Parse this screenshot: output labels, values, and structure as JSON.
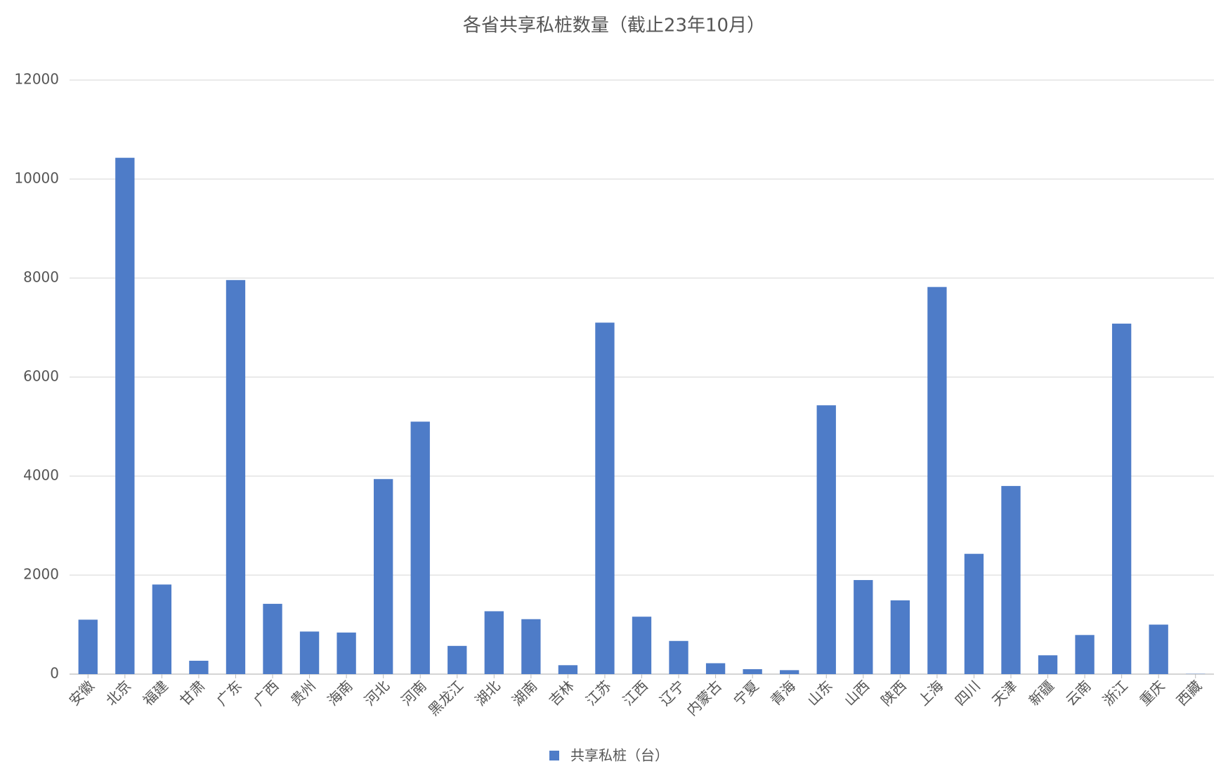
{
  "chart_data": {
    "type": "bar",
    "title": "各省共享私桩数量（截止23年10月）",
    "categories": [
      "安徽",
      "北京",
      "福建",
      "甘肃",
      "广东",
      "广西",
      "贵州",
      "海南",
      "河北",
      "河南",
      "黑龙江",
      "湖北",
      "湖南",
      "吉林",
      "江苏",
      "江西",
      "辽宁",
      "内蒙古",
      "宁夏",
      "青海",
      "山东",
      "山西",
      "陕西",
      "上海",
      "四川",
      "天津",
      "新疆",
      "云南",
      "浙江",
      "重庆",
      "西藏"
    ],
    "series": [
      {
        "name": "共享私桩（台）",
        "color": "#4e7cc8",
        "values": [
          1100,
          10430,
          1810,
          270,
          7960,
          1420,
          860,
          840,
          3940,
          5100,
          570,
          1270,
          1110,
          180,
          7100,
          1160,
          670,
          220,
          100,
          80,
          5430,
          1900,
          1490,
          7820,
          2430,
          3800,
          380,
          790,
          7080,
          1000,
          5
        ]
      }
    ],
    "ylim": [
      0,
      12000
    ],
    "yticks": [
      0,
      2000,
      4000,
      6000,
      8000,
      10000,
      12000
    ],
    "grid": true
  }
}
